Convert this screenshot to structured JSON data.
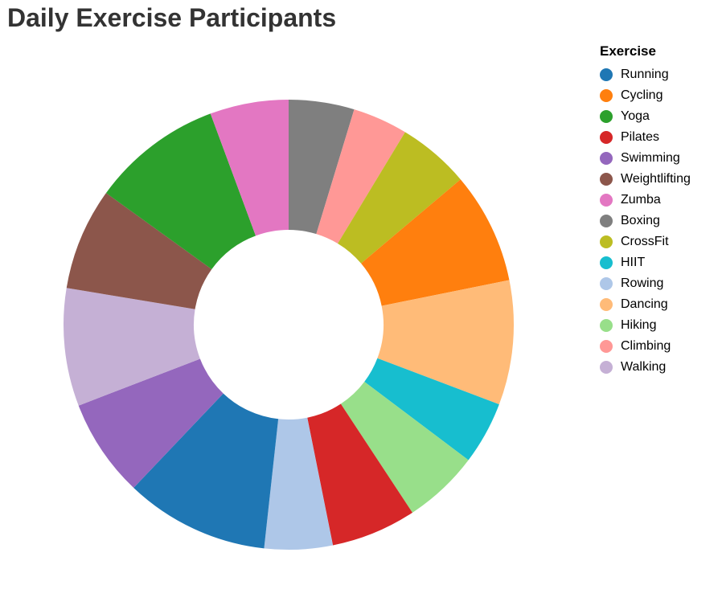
{
  "chart_data": {
    "type": "pie",
    "title": "Daily Exercise Participants",
    "legend_title": "Exercise",
    "legend_placement": "right",
    "donut": true,
    "categories": [
      "Running",
      "Cycling",
      "Yoga",
      "Pilates",
      "Swimming",
      "Weightlifting",
      "Zumba",
      "Boxing",
      "CrossFit",
      "HIIT",
      "Rowing",
      "Dancing",
      "Hiking",
      "Climbing",
      "Walking"
    ],
    "colors": [
      "#1f77b4",
      "#ff7f0e",
      "#2ca02c",
      "#d62728",
      "#9467bd",
      "#8c564b",
      "#e377c2",
      "#7f7f7f",
      "#bcbd22",
      "#17becf",
      "#aec7e8",
      "#ffbb78",
      "#98df8a",
      "#ff9896",
      "#c5b0d5"
    ],
    "order": [
      "Boxing",
      "Climbing",
      "CrossFit",
      "Cycling",
      "Dancing",
      "HIIT",
      "Hiking",
      "Pilates",
      "Rowing",
      "Running",
      "Swimming",
      "Walking",
      "Weightlifting",
      "Yoga",
      "Zumba"
    ],
    "values": {
      "Boxing": 50,
      "Climbing": 42,
      "CrossFit": 55,
      "Cycling": 85,
      "Dancing": 95,
      "HIIT": 48,
      "Hiking": 58,
      "Pilates": 65,
      "Rowing": 52,
      "Running": 110,
      "Swimming": 75,
      "Walking": 90,
      "Weightlifting": 78,
      "Yoga": 100,
      "Zumba": 60
    }
  }
}
